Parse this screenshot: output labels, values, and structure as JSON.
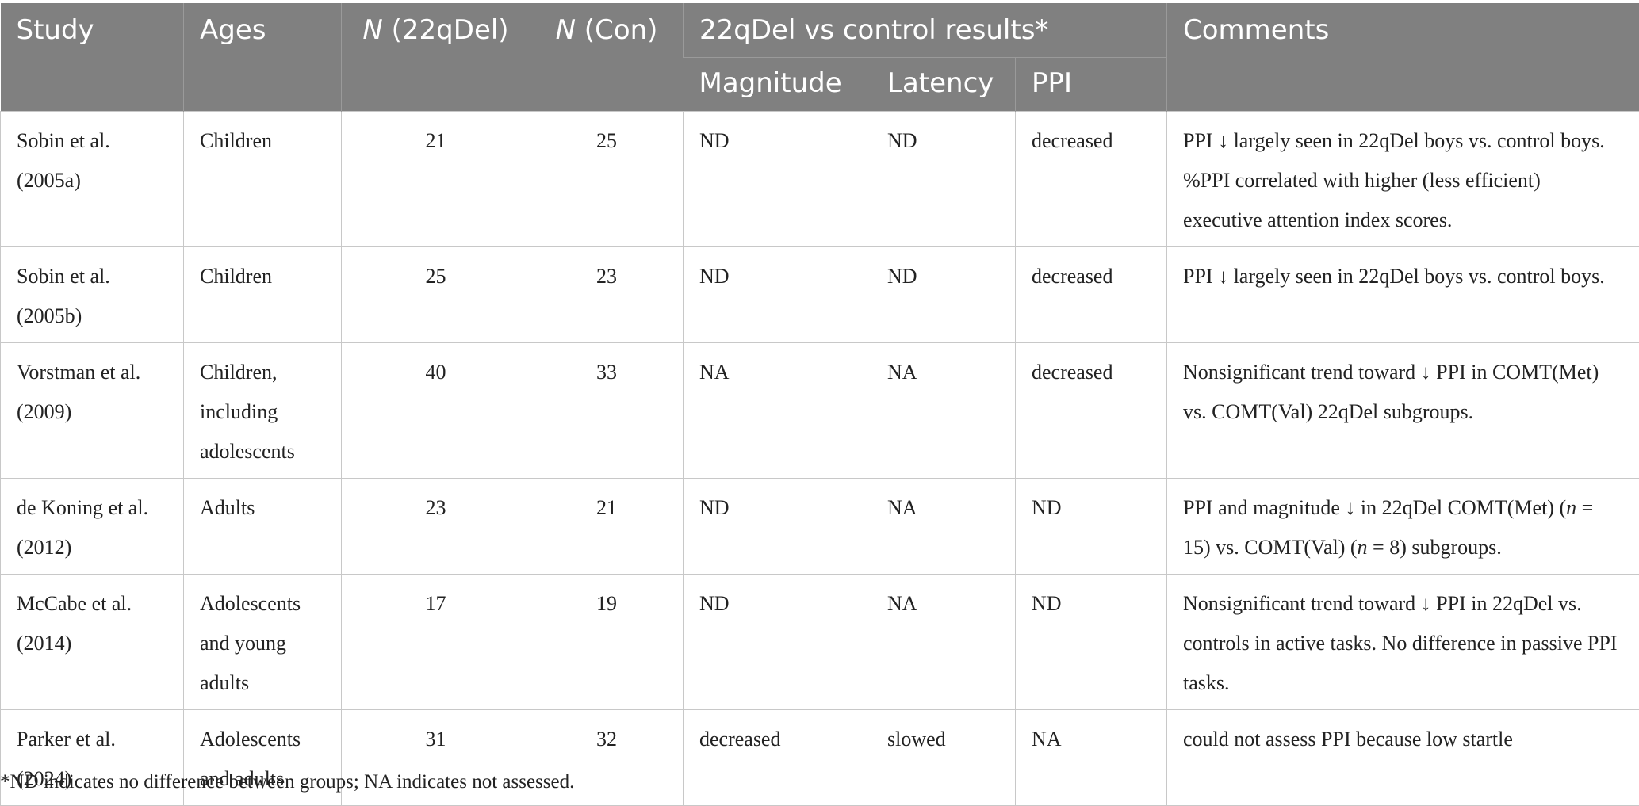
{
  "header": {
    "study": "Study",
    "ages": "Ages",
    "n_del_italic": "N",
    "n_del_rest": " (22qDel)",
    "n_con_italic": "N",
    "n_con_rest": " (Con)",
    "group": "22qDel vs control results*",
    "magnitude": "Magnitude",
    "latency": "Latency",
    "ppi": "PPI",
    "comments": "Comments"
  },
  "rows": [
    {
      "study": "Sobin et al. (2005a)",
      "ages": "Children",
      "n_del": "21",
      "n_con": "25",
      "magnitude": "ND",
      "latency": "ND",
      "ppi": "decreased",
      "comments": "PPI ↓ largely seen in 22qDel boys vs. control boys. %PPI correlated with higher (less efficient) executive attention index scores."
    },
    {
      "study": "Sobin et al. (2005b)",
      "ages": "Children",
      "n_del": "25",
      "n_con": "23",
      "magnitude": "ND",
      "latency": "ND",
      "ppi": "decreased",
      "comments": "PPI ↓ largely seen in 22qDel boys vs. control boys."
    },
    {
      "study": "Vorstman et al. (2009)",
      "ages": "Children, including adolescents",
      "n_del": "40",
      "n_con": "33",
      "magnitude": "NA",
      "latency": "NA",
      "ppi": "decreased",
      "comments": "Nonsignificant trend toward ↓ PPI in COMT(Met) vs. COMT(Val) 22qDel subgroups."
    },
    {
      "study": "de Koning et al. (2012)",
      "ages": "Adults",
      "n_del": "23",
      "n_con": "21",
      "magnitude": "ND",
      "latency": "NA",
      "ppi": "ND",
      "comments_parts": [
        "PPI and magnitude ↓ in 22qDel COMT(Met) (",
        "n",
        " = 15) vs. COMT(Val) (",
        "n",
        " = 8) subgroups."
      ]
    },
    {
      "study": "McCabe et al. (2014)",
      "ages": "Adolescents and young adults",
      "n_del": "17",
      "n_con": "19",
      "magnitude": "ND",
      "latency": "NA",
      "ppi": "ND",
      "comments": "Nonsignificant trend toward ↓ PPI in 22qDel vs. controls in active tasks. No difference in passive PPI tasks."
    },
    {
      "study": "Parker et al. (2024)",
      "ages": "Adolescents and adults",
      "n_del": "31",
      "n_con": "32",
      "magnitude": "decreased",
      "latency": "slowed",
      "ppi": "NA",
      "comments": "could not assess PPI because low startle"
    }
  ],
  "footnote": "*ND indicates no difference between groups; NA indicates not assessed."
}
